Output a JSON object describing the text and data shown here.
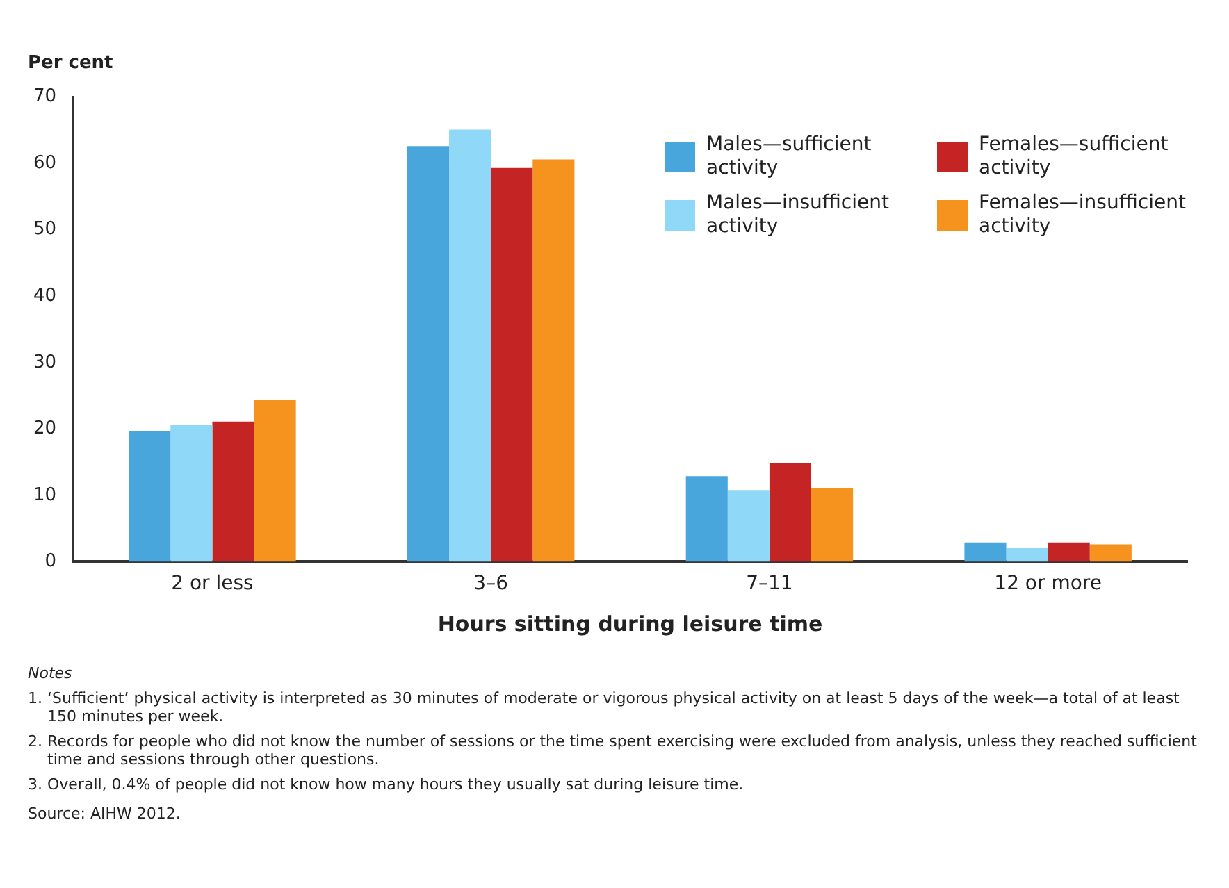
{
  "chart_data": {
    "type": "bar",
    "ylabel": "Per cent",
    "xlabel": "Hours sitting during leisure time",
    "categories": [
      "2 or less",
      "3–6",
      "7–11",
      "12 or more"
    ],
    "series": [
      {
        "name": "Males—sufficient activity",
        "color": "#48a6dc",
        "values": [
          19.7,
          62.6,
          12.9,
          2.9
        ]
      },
      {
        "name": "Males—insufficient activity",
        "color": "#8fd8f7",
        "values": [
          20.6,
          65.1,
          10.8,
          2.1
        ]
      },
      {
        "name": "Females—sufficient activity",
        "color": "#c42424",
        "values": [
          21.1,
          59.3,
          14.9,
          2.9
        ]
      },
      {
        "name": "Females—insufficient activity",
        "color": "#f5931e",
        "values": [
          24.4,
          60.6,
          11.1,
          2.6
        ]
      }
    ],
    "ylim": [
      0,
      70
    ],
    "yticks": [
      0,
      10,
      20,
      30,
      40,
      50,
      60,
      70
    ],
    "grid": false,
    "legend": "top right",
    "annotations": [
      "Notes",
      "1. ‘Sufficient’ physical activity is interpreted as 30 minutes of moderate or vigorous physical activity on at least 5 days of the week—a total of at least 150 minutes per week.",
      "2. Records for people who did not know the number of sessions or the time spent exercising were excluded from analysis, unless they reached sufficient time and sessions through other questions.",
      "3. Overall, 0.4% of people did not know how many hours they usually sat during leisure time.",
      "Source: AIHW 2012."
    ]
  }
}
